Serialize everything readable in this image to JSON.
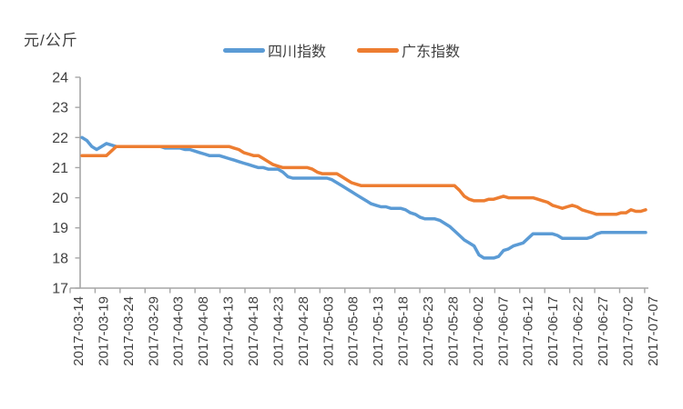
{
  "unit_label": "元/公斤",
  "colors": {
    "series_sichuan": "#5B9BD5",
    "series_guangdong": "#ED7D31",
    "axis": "#A6A6A6",
    "text": "#404040",
    "background": "#FFFFFF"
  },
  "legend": [
    {
      "label": "四川指数",
      "color": "#5B9BD5"
    },
    {
      "label": "广东指数",
      "color": "#ED7D31"
    }
  ],
  "chart_data": {
    "type": "line",
    "title": "",
    "xlabel": "",
    "ylabel": "元/公斤",
    "ylim": [
      17,
      24
    ],
    "y_ticks": [
      17,
      18,
      19,
      20,
      21,
      22,
      23,
      24
    ],
    "grid": false,
    "legend_position": "top-center",
    "x_start_date": "2017-03-14",
    "x_end_date": "2017-07-07",
    "x_interval": "daily",
    "points_per_tick": 5,
    "x_tick_labels": [
      "2017-03-14",
      "2017-03-19",
      "2017-03-24",
      "2017-03-29",
      "2017-04-03",
      "2017-04-08",
      "2017-04-13",
      "2017-04-18",
      "2017-04-23",
      "2017-04-28",
      "2017-05-03",
      "2017-05-08",
      "2017-05-13",
      "2017-05-18",
      "2017-05-23",
      "2017-05-28",
      "2017-06-02",
      "2017-06-07",
      "2017-06-12",
      "2017-06-17",
      "2017-06-22",
      "2017-06-27",
      "2017-07-02",
      "2017-07-07"
    ],
    "series": [
      {
        "name": "四川指数",
        "color": "#5B9BD5",
        "values": [
          22.0,
          21.9,
          21.7,
          21.6,
          21.7,
          21.8,
          21.75,
          21.7,
          21.7,
          21.7,
          21.7,
          21.7,
          21.7,
          21.7,
          21.7,
          21.7,
          21.7,
          21.65,
          21.65,
          21.65,
          21.65,
          21.6,
          21.6,
          21.55,
          21.5,
          21.45,
          21.4,
          21.4,
          21.4,
          21.35,
          21.3,
          21.25,
          21.2,
          21.15,
          21.1,
          21.05,
          21.0,
          21.0,
          20.95,
          20.95,
          20.95,
          20.85,
          20.7,
          20.65,
          20.65,
          20.65,
          20.65,
          20.65,
          20.65,
          20.65,
          20.65,
          20.6,
          20.5,
          20.4,
          20.3,
          20.2,
          20.1,
          20.0,
          19.9,
          19.8,
          19.75,
          19.7,
          19.7,
          19.65,
          19.65,
          19.65,
          19.6,
          19.5,
          19.45,
          19.35,
          19.3,
          19.3,
          19.3,
          19.25,
          19.15,
          19.05,
          18.9,
          18.75,
          18.6,
          18.5,
          18.4,
          18.1,
          18.0,
          18.0,
          18.0,
          18.05,
          18.25,
          18.3,
          18.4,
          18.45,
          18.5,
          18.65,
          18.8,
          18.8,
          18.8,
          18.8,
          18.8,
          18.75,
          18.65,
          18.65,
          18.65,
          18.65,
          18.65,
          18.65,
          18.7,
          18.8,
          18.85,
          18.85,
          18.85,
          18.85,
          18.85,
          18.85,
          18.85,
          18.85,
          18.85,
          18.85
        ]
      },
      {
        "name": "广东指数",
        "color": "#ED7D31",
        "values": [
          21.4,
          21.4,
          21.4,
          21.4,
          21.4,
          21.4,
          21.55,
          21.7,
          21.7,
          21.7,
          21.7,
          21.7,
          21.7,
          21.7,
          21.7,
          21.7,
          21.7,
          21.7,
          21.7,
          21.7,
          21.7,
          21.7,
          21.7,
          21.7,
          21.7,
          21.7,
          21.7,
          21.7,
          21.7,
          21.7,
          21.7,
          21.65,
          21.6,
          21.5,
          21.45,
          21.4,
          21.4,
          21.3,
          21.2,
          21.1,
          21.05,
          21.0,
          21.0,
          21.0,
          21.0,
          21.0,
          21.0,
          20.95,
          20.85,
          20.8,
          20.8,
          20.8,
          20.8,
          20.7,
          20.6,
          20.5,
          20.45,
          20.4,
          20.4,
          20.4,
          20.4,
          20.4,
          20.4,
          20.4,
          20.4,
          20.4,
          20.4,
          20.4,
          20.4,
          20.4,
          20.4,
          20.4,
          20.4,
          20.4,
          20.4,
          20.4,
          20.4,
          20.25,
          20.05,
          19.95,
          19.9,
          19.9,
          19.9,
          19.95,
          19.95,
          20.0,
          20.05,
          20.0,
          20.0,
          20.0,
          20.0,
          20.0,
          20.0,
          19.95,
          19.9,
          19.85,
          19.75,
          19.7,
          19.65,
          19.7,
          19.75,
          19.7,
          19.6,
          19.55,
          19.5,
          19.45,
          19.45,
          19.45,
          19.45,
          19.45,
          19.5,
          19.5,
          19.6,
          19.55,
          19.55,
          19.6
        ]
      }
    ]
  }
}
